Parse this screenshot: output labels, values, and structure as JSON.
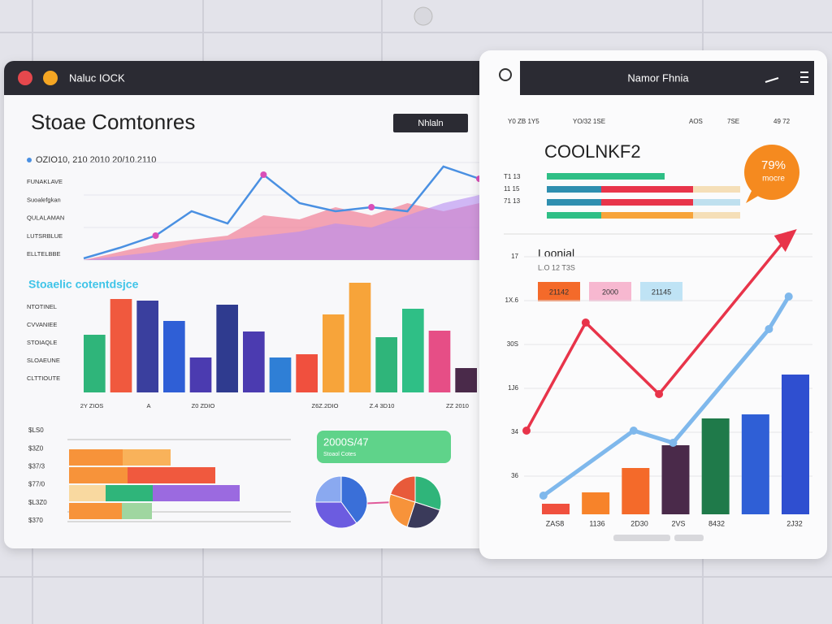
{
  "left_window": {
    "title": "Naluc IOCK",
    "heading": "Stoae Comtonres",
    "button": "Nhlaln",
    "date_line": "OZIO10, 210 2010 20/10.2110",
    "row_labels": [
      "FUNAKLAVE",
      "Suoalefgkan",
      "QULALAMAN",
      "LUTSRBLUE",
      "ELLTELBBE"
    ],
    "area_chart": {
      "ylim": [
        0,
        120
      ],
      "areas": [
        {
          "color": "#f06a86",
          "values": [
            0,
            10,
            20,
            25,
            30,
            55,
            50,
            65,
            55,
            70,
            60,
            70
          ]
        },
        {
          "color": "#b58cf2",
          "values": [
            0,
            5,
            10,
            20,
            25,
            30,
            35,
            45,
            40,
            55,
            70,
            80
          ]
        }
      ],
      "line": {
        "color": "#4a90e2",
        "values": [
          2,
          15,
          30,
          60,
          45,
          105,
          70,
          60,
          65,
          60,
          115,
          100
        ]
      }
    },
    "subheading": "Stoaelic cotentdsjce",
    "bar_labels": [
      "NTOTINEL",
      "CVVANIEE",
      "STOIAQLE",
      "SLOAEUNE",
      "CLTTIOUTE"
    ],
    "bar_chart": {
      "ylim": [
        0,
        140
      ],
      "values": [
        71,
        115,
        113,
        88,
        43,
        108,
        75,
        43,
        47,
        96,
        135,
        68,
        103,
        76,
        30
      ],
      "colors": [
        "#2fb57a",
        "#f0593e",
        "#3a3f9e",
        "#2f5fd6",
        "#4b3bb0",
        "#2f3b8f",
        "#4b3bb0",
        "#2f7fd6",
        "#f0503e",
        "#f7a43a",
        "#f7a43a",
        "#2fb57a",
        "#2fbf86",
        "#e64e86",
        "#4a2a4a"
      ]
    },
    "x_labels": [
      "2Y ZIOS",
      "A",
      "Z0 ZDIO",
      "Z6Z.2DIO",
      "Z.4 3D10",
      "ZZ 2010"
    ],
    "hbar_labels": [
      "$LS0",
      "$3Z0",
      "$37/3",
      "$77/0",
      "$L3Z0",
      "$370"
    ],
    "hbar_chart": {
      "rows": [
        [
          {
            "color": "#f7933a",
            "value": 66
          },
          {
            "color": "#f9b25a",
            "value": 59
          }
        ],
        [
          {
            "color": "#f7933a",
            "value": 72
          },
          {
            "color": "#f0593e",
            "value": 108
          }
        ],
        [
          {
            "color": "#f9d9a0",
            "value": 45
          },
          {
            "color": "#2fb57a",
            "value": 58
          },
          {
            "color": "#9b6ae0",
            "value": 107
          }
        ],
        [
          {
            "color": "#f7933a",
            "value": 65
          },
          {
            "color": "#9fd6a0",
            "value": 37
          }
        ]
      ]
    },
    "badge": {
      "title": "2000S/47",
      "sub": "Stoaol Cotes"
    },
    "pies": [
      {
        "values": [
          40,
          35,
          25
        ],
        "colors": [
          "#3a6fd8",
          "#6c5ce0",
          "#8aa9f0"
        ]
      },
      {
        "values": [
          30,
          25,
          25,
          20
        ],
        "colors": [
          "#2fb57a",
          "#3a3a5a",
          "#f7933a",
          "#e85a3a"
        ]
      }
    ]
  },
  "right_window": {
    "title": "Namor Fhnia",
    "top_labels": [
      "Y0 ZB 1Y5",
      "YO/32 1SE",
      "AOS",
      "7SE",
      "49 72"
    ],
    "heading": "COOLNKF2",
    "badge": {
      "value": "79%",
      "sub": "mocre"
    },
    "hbar_labels": [
      "T1 13",
      "11 15",
      "71 13"
    ],
    "hbar_chart": {
      "rows": [
        [
          {
            "color": "#2fbf86",
            "value": 145
          }
        ],
        [
          {
            "color": "#2f8fb0",
            "value": 67
          },
          {
            "color": "#e8344a",
            "value": 113
          },
          {
            "color": "#f5dfb8",
            "value": 58
          }
        ],
        [
          {
            "color": "#2f8fb0",
            "value": 67
          },
          {
            "color": "#e8344a",
            "value": 113
          },
          {
            "color": "#bfe0ef",
            "value": 58
          }
        ],
        [
          {
            "color": "#2fbf86",
            "value": 67
          },
          {
            "color": "#f7a43a",
            "value": 113
          },
          {
            "color": "#f5dfb8",
            "value": 58
          }
        ]
      ]
    },
    "chart_heading": "Loonial",
    "chart_sub": "L.O 12 T3S",
    "tags": [
      {
        "text": "21142",
        "color": "#f46a2a"
      },
      {
        "text": "2000",
        "color": "#f7b8d0"
      },
      {
        "text": "21145",
        "color": "#bfe3f5"
      }
    ],
    "y_labels": [
      "17",
      "1X.6",
      "30S",
      "1J6",
      "34",
      "36"
    ],
    "main_chart": {
      "ylim": [
        0,
        350
      ],
      "xlim": [
        0,
        100
      ],
      "bars": {
        "values": [
          13,
          27,
          57,
          85,
          118,
          123,
          172
        ],
        "colors": [
          "#f0503e",
          "#f7832a",
          "#f46a2a",
          "#4a2a4a",
          "#1f7a4a",
          "#2f5fd6",
          "#2f4fd0"
        ]
      },
      "red_line": {
        "color": "#e8344a",
        "x": [
          0,
          21,
          47,
          93
        ],
        "values": [
          103,
          236,
          148,
          343
        ]
      },
      "blue_line": {
        "color": "#7fb8ec",
        "x": [
          6,
          38,
          52,
          86,
          93
        ],
        "values": [
          23,
          103,
          88,
          228,
          268
        ]
      }
    },
    "x_labels": [
      "ZAS8",
      "1136",
      "2D30",
      "2VS",
      "8432",
      "2J32"
    ]
  }
}
